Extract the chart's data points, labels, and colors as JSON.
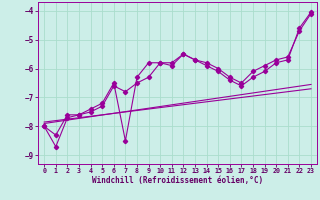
{
  "xlabel": "Windchill (Refroidissement éolien,°C)",
  "bg_color": "#cceee8",
  "grid_color": "#aaddcc",
  "line_color": "#990099",
  "xlim": [
    -0.5,
    23.5
  ],
  "ylim": [
    -9.3,
    -3.7
  ],
  "yticks": [
    -9,
    -8,
    -7,
    -6,
    -5,
    -4
  ],
  "xticks": [
    0,
    1,
    2,
    3,
    4,
    5,
    6,
    7,
    8,
    9,
    10,
    11,
    12,
    13,
    14,
    15,
    16,
    17,
    18,
    19,
    20,
    21,
    22,
    23
  ],
  "series_jagged1": {
    "x": [
      0,
      1,
      2,
      3,
      4,
      5,
      6,
      7,
      8,
      9,
      10,
      11,
      12,
      13,
      14,
      15,
      16,
      17,
      18,
      19,
      20,
      21,
      22,
      23
    ],
    "y": [
      -8.0,
      -8.7,
      -7.7,
      -7.6,
      -7.4,
      -7.2,
      -6.5,
      -8.5,
      -6.3,
      -5.8,
      -5.8,
      -5.9,
      -5.5,
      -5.7,
      -5.8,
      -6.0,
      -6.3,
      -6.5,
      -6.1,
      -5.9,
      -5.7,
      -5.6,
      -4.7,
      -4.1
    ]
  },
  "series_jagged2": {
    "x": [
      0,
      1,
      2,
      3,
      4,
      5,
      6,
      7,
      8,
      9,
      10,
      11,
      12,
      13,
      14,
      15,
      16,
      17,
      18,
      19,
      20,
      21,
      22,
      23
    ],
    "y": [
      -8.0,
      -8.3,
      -7.6,
      -7.6,
      -7.5,
      -7.3,
      -6.6,
      -6.8,
      -6.5,
      -6.3,
      -5.8,
      -5.8,
      -5.5,
      -5.7,
      -5.9,
      -6.1,
      -6.4,
      -6.6,
      -6.3,
      -6.1,
      -5.8,
      -5.7,
      -4.6,
      -4.05
    ]
  },
  "regression1": {
    "x": [
      0,
      23
    ],
    "y": [
      -7.9,
      -6.55
    ]
  },
  "regression2": {
    "x": [
      0,
      23
    ],
    "y": [
      -7.85,
      -6.7
    ]
  }
}
